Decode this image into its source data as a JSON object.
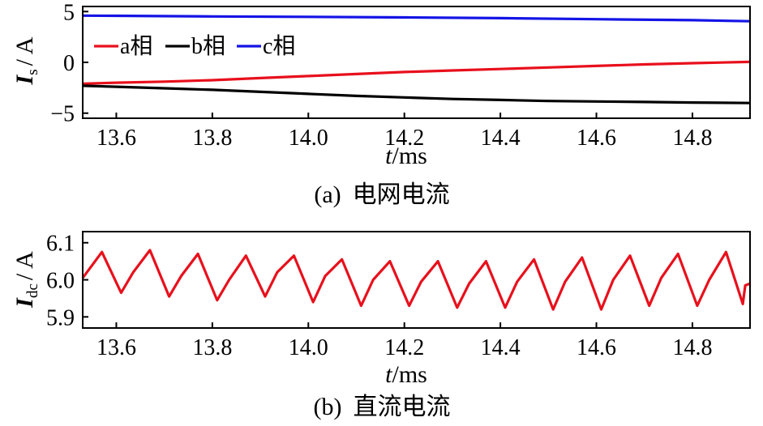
{
  "chart_data": [
    {
      "type": "line",
      "x_label": "t/ms",
      "x_label_italic": "t",
      "x_label_unit": "/ms",
      "y_label": "Is / A",
      "y_label_symbol": "I",
      "y_label_sub": "s",
      "y_label_unit": "/ A",
      "caption": "(a)  电网电流",
      "caption_prefix": "(a)",
      "caption_text": "电网电流",
      "xlim": [
        13.53,
        14.92
      ],
      "ylim": [
        -5.5,
        5.5
      ],
      "x_ticks": [
        13.6,
        13.8,
        14.0,
        14.2,
        14.4,
        14.6,
        14.8
      ],
      "x_tick_labels": [
        "13.6",
        "13.8",
        "14.0",
        "14.2",
        "14.4",
        "14.6",
        "14.8"
      ],
      "y_ticks": [
        -5,
        0,
        5
      ],
      "y_tick_labels": [
        "−5",
        "0",
        "5"
      ],
      "legend_position": "top-left",
      "grid": false,
      "series": [
        {
          "name": "a相",
          "color": "#e8101c",
          "x": [
            13.53,
            13.6,
            13.7,
            13.8,
            13.9,
            14.0,
            14.1,
            14.2,
            14.3,
            14.4,
            14.5,
            14.6,
            14.7,
            14.8,
            14.92
          ],
          "y": [
            -2.1,
            -2.0,
            -1.9,
            -1.75,
            -1.55,
            -1.35,
            -1.15,
            -0.95,
            -0.8,
            -0.65,
            -0.5,
            -0.35,
            -0.2,
            -0.08,
            0.05
          ]
        },
        {
          "name": "b相",
          "color": "#000000",
          "x": [
            13.53,
            13.6,
            13.7,
            13.8,
            13.9,
            14.0,
            14.1,
            14.2,
            14.3,
            14.4,
            14.5,
            14.6,
            14.7,
            14.8,
            14.92
          ],
          "y": [
            -2.3,
            -2.4,
            -2.55,
            -2.7,
            -2.9,
            -3.1,
            -3.3,
            -3.45,
            -3.6,
            -3.7,
            -3.8,
            -3.85,
            -3.9,
            -3.95,
            -4.0
          ]
        },
        {
          "name": "c相",
          "color": "#1414e6",
          "x": [
            13.53,
            13.6,
            13.8,
            14.0,
            14.2,
            14.4,
            14.6,
            14.8,
            14.92
          ],
          "y": [
            4.6,
            4.58,
            4.52,
            4.48,
            4.42,
            4.35,
            4.25,
            4.15,
            4.05
          ]
        }
      ]
    },
    {
      "type": "line",
      "x_label": "t/ms",
      "x_label_italic": "t",
      "x_label_unit": "/ms",
      "y_label": "Idc / A",
      "y_label_symbol": "I",
      "y_label_sub": "dc",
      "y_label_unit": "/ A",
      "caption": "(b)  直流电流",
      "caption_prefix": "(b)",
      "caption_text": "直流电流",
      "xlim": [
        13.53,
        14.92
      ],
      "ylim": [
        5.87,
        6.13
      ],
      "x_ticks": [
        13.6,
        13.8,
        14.0,
        14.2,
        14.4,
        14.6,
        14.8
      ],
      "x_tick_labels": [
        "13.6",
        "13.8",
        "14.0",
        "14.2",
        "14.4",
        "14.6",
        "14.8"
      ],
      "y_ticks": [
        5.9,
        6.0,
        6.1
      ],
      "y_tick_labels": [
        "5.9",
        "6.0",
        "6.1"
      ],
      "grid": false,
      "series": [
        {
          "name": "",
          "color": "#e8101c",
          "x": [
            13.53,
            13.57,
            13.61,
            13.635,
            13.67,
            13.71,
            13.735,
            13.77,
            13.81,
            13.835,
            13.87,
            13.91,
            13.935,
            13.97,
            14.01,
            14.035,
            14.07,
            14.11,
            14.135,
            14.17,
            14.21,
            14.235,
            14.27,
            14.31,
            14.335,
            14.37,
            14.41,
            14.435,
            14.47,
            14.51,
            14.535,
            14.57,
            14.61,
            14.635,
            14.67,
            14.71,
            14.735,
            14.77,
            14.81,
            14.835,
            14.87,
            14.905,
            14.91,
            14.92
          ],
          "y": [
            6.005,
            6.075,
            5.965,
            6.02,
            6.08,
            5.955,
            6.01,
            6.07,
            5.945,
            6.0,
            6.065,
            5.955,
            6.02,
            6.065,
            5.94,
            6.01,
            6.055,
            5.93,
            6.0,
            6.05,
            5.93,
            5.995,
            6.05,
            5.925,
            5.99,
            6.05,
            5.925,
            5.995,
            6.055,
            5.92,
            5.995,
            6.06,
            5.92,
            6.0,
            6.065,
            5.93,
            6.005,
            6.07,
            5.93,
            6.0,
            6.075,
            5.935,
            5.985,
            5.99
          ]
        }
      ]
    }
  ]
}
